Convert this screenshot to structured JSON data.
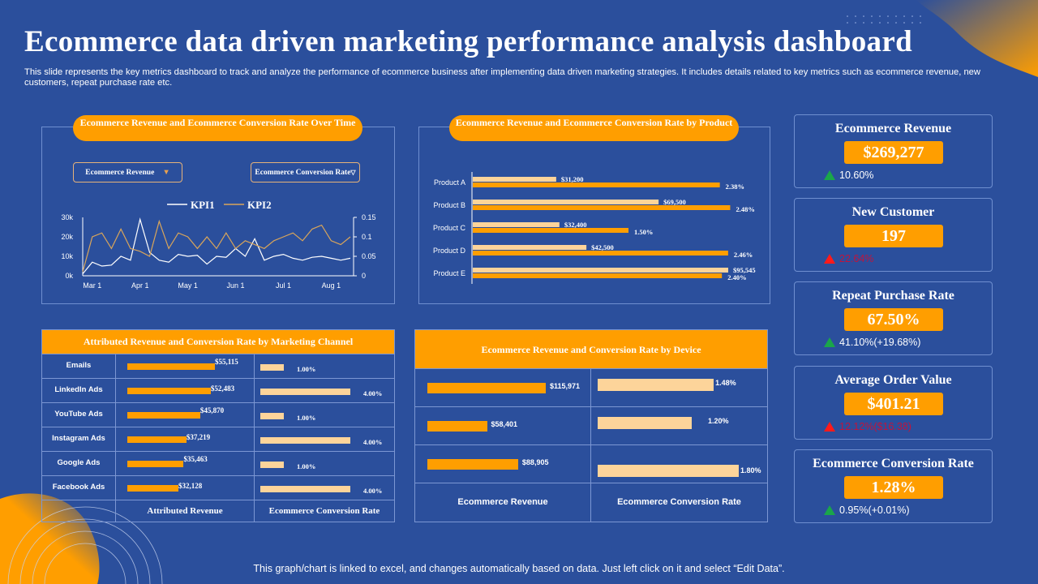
{
  "title": "Ecommerce data driven marketing performance analysis dashboard",
  "description": "This slide represents the key metrics dashboard to track and analyze the performance of ecommerce business after implementing data driven marketing strategies. It includes details related to key metrics such as ecommerce revenue, new customers, repeat purchase rate etc.",
  "footer": "This graph/chart is linked to excel, and changes automatically based on data. Just left click on it and select “Edit Data”.",
  "colors": {
    "background": "#2b4f9c",
    "accent": "#ff9e00",
    "light_bar": "#fdd49a",
    "up": "#1aa64a",
    "down": "#ff1a1a",
    "down_text": "#c0143c"
  },
  "over_time": {
    "title": "Ecommerce Revenue and Ecommerce Conversion Rate Over Time",
    "dropdown1": "Ecommerce Revenue",
    "dropdown2": "Ecommerce Conversion Rate",
    "icons": {
      "dropdown": "triangle-down-icon"
    }
  },
  "by_product": {
    "title": "Ecommerce Revenue and Ecommerce Conversion Rate by Product"
  },
  "channel": {
    "title": "Attributed  Revenue and Conversion Rate by Marketing Channel",
    "col1": "Attributed Revenue",
    "col2": "Ecommerce Conversion Rate",
    "rows": [
      {
        "name": "Emails",
        "revenue": 55115,
        "revenue_label": "$55,115",
        "rate": 1.0,
        "rate_label": "1.00%"
      },
      {
        "name": "LinkedIn Ads",
        "revenue": 52483,
        "revenue_label": "$52,483",
        "rate": 4.0,
        "rate_label": "4.00%"
      },
      {
        "name": "YouTube Ads",
        "revenue": 45870,
        "revenue_label": "$45,870",
        "rate": 1.0,
        "rate_label": "1.00%"
      },
      {
        "name": "Instagram Ads",
        "revenue": 37219,
        "revenue_label": "$37,219",
        "rate": 4.0,
        "rate_label": "4.00%"
      },
      {
        "name": "Google Ads",
        "revenue": 35463,
        "revenue_label": "$35,463",
        "rate": 1.0,
        "rate_label": "1.00%"
      },
      {
        "name": "Facebook Ads",
        "revenue": 32128,
        "revenue_label": "$32,128",
        "rate": 4.0,
        "rate_label": "4.00%"
      }
    ]
  },
  "device": {
    "title": "Ecommerce Revenue and Conversion Rate by Device",
    "col1": "Ecommerce Revenue",
    "col2": "Ecommerce Conversion Rate",
    "rows": [
      {
        "revenue": 115971,
        "revenue_label": "$115,971",
        "rate": 1.48,
        "rate_label": "1.48%"
      },
      {
        "revenue": 58401,
        "revenue_label": "$58,401",
        "rate": 1.2,
        "rate_label": "1.20%"
      },
      {
        "revenue": 88905,
        "revenue_label": "$88,905",
        "rate": 1.8,
        "rate_label": "1.80%"
      }
    ]
  },
  "kpis": [
    {
      "title": "Ecommerce Revenue",
      "value": "$269,277",
      "change": "10.60%",
      "trend": "up"
    },
    {
      "title": "New Customer",
      "value": "197",
      "change": "22.64%",
      "trend": "down"
    },
    {
      "title": "Repeat Purchase Rate",
      "value": "67.50%",
      "change": "41.10%(+19.68%)",
      "trend": "up"
    },
    {
      "title": "Average Order Value",
      "value": "$401.21",
      "change": "12.12%($16.38)",
      "trend": "down"
    },
    {
      "title": "Ecommerce Conversion Rate",
      "value": "1.28%",
      "change": "0.95%(+0.01%)",
      "trend": "up"
    }
  ],
  "chart_data": [
    {
      "type": "line",
      "legend": "top",
      "legend_entries": [
        "KPI1",
        "KPI2"
      ],
      "x_ticks": [
        {
          "label": "Mar 1",
          "index": 1
        },
        {
          "label": "Apr 1",
          "index": 6
        },
        {
          "label": "May 1",
          "index": 11
        },
        {
          "label": "Jun 1",
          "index": 16
        },
        {
          "label": "Jul 1",
          "index": 21
        },
        {
          "label": "Aug 1",
          "index": 26
        }
      ],
      "y_left": {
        "ticks": [
          "0k",
          "10k",
          "20k",
          "30k"
        ],
        "range": [
          0,
          30000
        ]
      },
      "y_right": {
        "ticks": [
          "0",
          "0.05",
          "0.1",
          "0.15"
        ],
        "range": [
          0,
          0.15
        ]
      },
      "series": [
        {
          "name": "KPI1",
          "axis": "left",
          "color": "#ffffff",
          "values": [
            1000,
            7000,
            5000,
            5500,
            10000,
            8000,
            29000,
            12000,
            8000,
            7000,
            11000,
            10000,
            10500,
            6000,
            10000,
            9500,
            14000,
            10000,
            19000,
            8000,
            10000,
            11000,
            9000,
            8000,
            9500,
            10000,
            9000,
            8000,
            9000
          ]
        },
        {
          "name": "KPI2",
          "axis": "right",
          "color": "#d9a55a",
          "values": [
            0.01,
            0.1,
            0.11,
            0.07,
            0.12,
            0.07,
            0.063,
            0.05,
            0.14,
            0.07,
            0.11,
            0.1,
            0.07,
            0.1,
            0.07,
            0.11,
            0.07,
            0.09,
            0.08,
            0.07,
            0.09,
            0.1,
            0.11,
            0.09,
            0.12,
            0.13,
            0.09,
            0.08,
            0.1
          ]
        }
      ]
    },
    {
      "type": "bar",
      "orientation": "horizontal",
      "categories": [
        "Product A",
        "Product B",
        "Product C",
        "Product D",
        "Product E"
      ],
      "series": [
        {
          "metric": "revenue",
          "color": "#fdd49a",
          "values": [
            31200,
            69500,
            32400,
            42500,
            95545
          ],
          "labels": [
            "$31,200",
            "$69,500",
            "$32,400",
            "$42,500",
            "$95,545"
          ]
        },
        {
          "metric": "conversion",
          "color": "#ff9e00",
          "values": [
            2.38,
            2.48,
            1.5,
            2.46,
            2.4
          ],
          "labels": [
            "2.38%",
            "2.48%",
            "1.50%",
            "2.46%",
            "2.40%"
          ]
        }
      ]
    }
  ]
}
